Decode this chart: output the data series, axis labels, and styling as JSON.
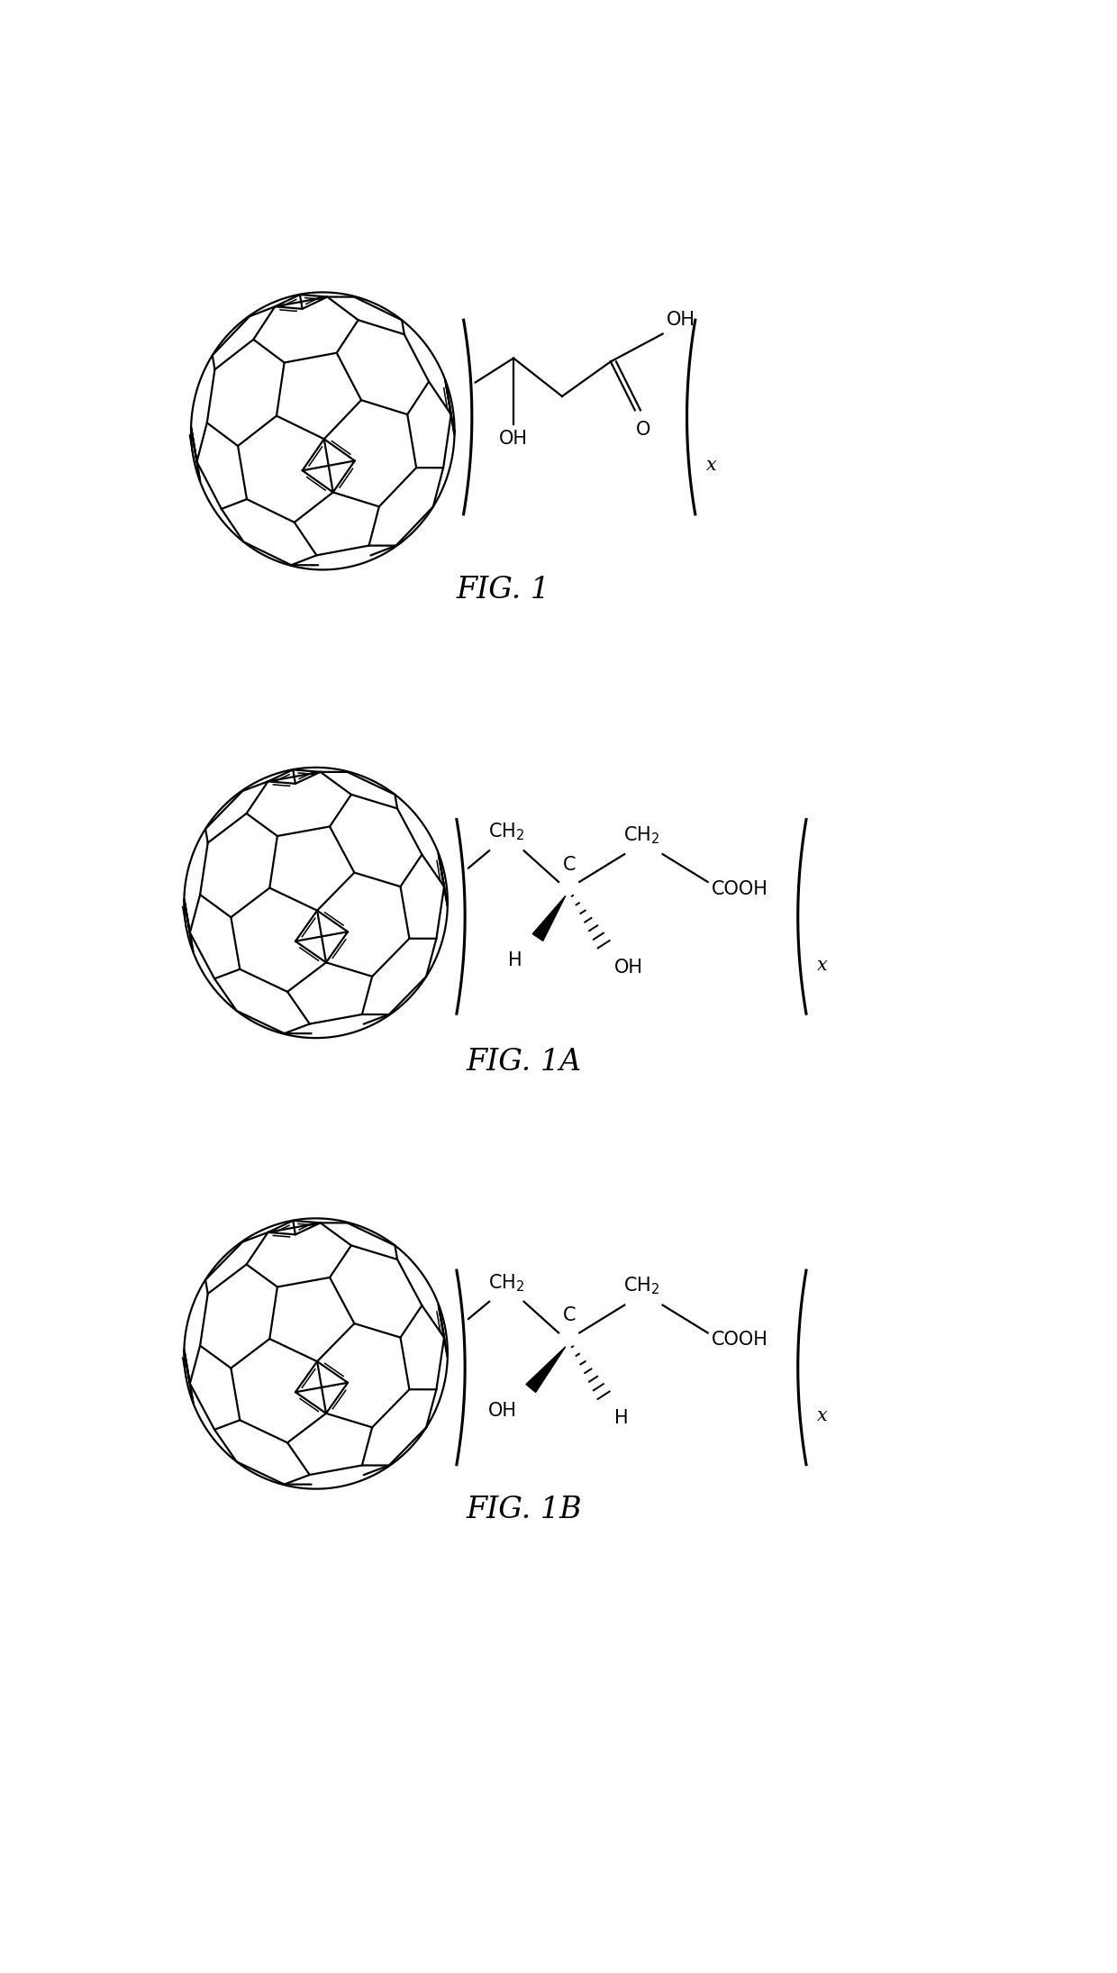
{
  "background_color": "#ffffff",
  "fig_width": 12.4,
  "fig_height": 21.9,
  "fig1_label": "FIG. 1",
  "fig1a_label": "FIG. 1A",
  "fig1b_label": "FIG. 1B",
  "label_fontsize": 24,
  "label_style": "italic",
  "chem_fontsize": 15,
  "line_color": "#000000",
  "line_width": 1.6
}
